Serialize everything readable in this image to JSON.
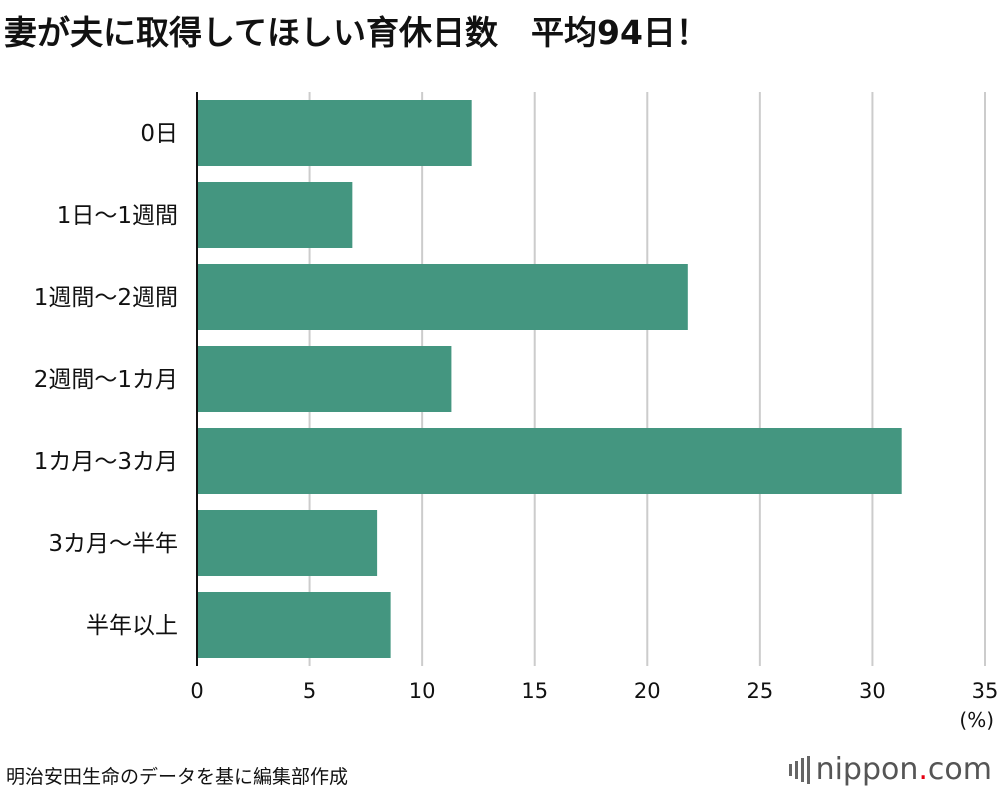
{
  "title": "妻が夫に取得してほしい育休日数　平均94日！",
  "unit_label": "(%)",
  "source": "明治安田生命のデータを基に編集部作成",
  "logo": {
    "name": "nippon",
    "dot": ".",
    "suffix": "com"
  },
  "colors": {
    "bar": "#449680",
    "grid": "#cccccc",
    "axis": "#111111"
  },
  "chart_data": {
    "type": "bar",
    "orientation": "horizontal",
    "categories": [
      "0日",
      "1日〜1週間",
      "1週間〜2週間",
      "2週間〜1カ月",
      "1カ月〜3カ月",
      "3カ月〜半年",
      "半年以上"
    ],
    "values": [
      12.2,
      6.9,
      21.8,
      11.3,
      31.3,
      8.0,
      8.6
    ],
    "title": "妻が夫に取得してほしい育休日数　平均94日！",
    "xlabel": "(%)",
    "ylabel": "",
    "xlim": [
      0,
      35
    ],
    "xticks": [
      0,
      5,
      10,
      15,
      20,
      25,
      30,
      35
    ],
    "grid": true
  }
}
